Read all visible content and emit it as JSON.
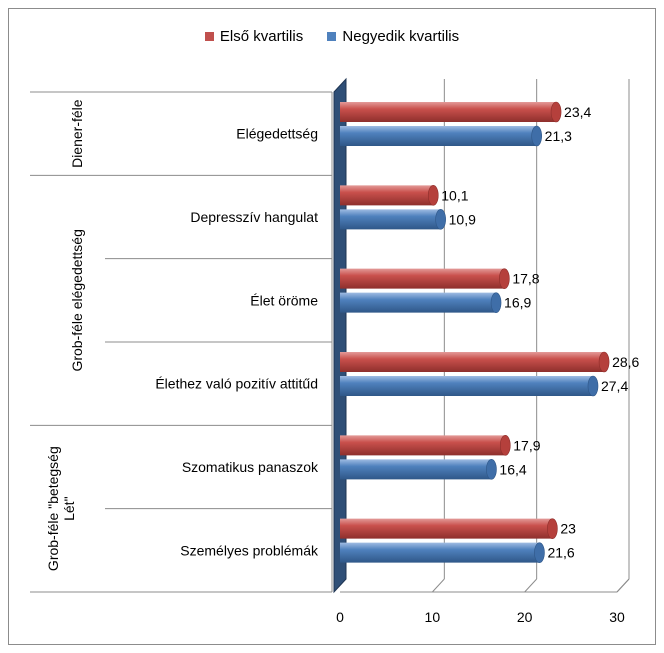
{
  "chart_data": {
    "type": "bar",
    "orientation": "horizontal",
    "grid": true,
    "legend_position": "top",
    "xlim": [
      0,
      30
    ],
    "x_ticks": [
      "0",
      "10",
      "20",
      "30"
    ],
    "categories": [
      "Elégedettség",
      "Depresszív hangulat",
      "Élet öröme",
      "Élethez való pozitív attitűd",
      "Szomatikus panaszok",
      "Személyes problémák"
    ],
    "groups": [
      {
        "label": "Diener-féle",
        "categories": [
          0
        ]
      },
      {
        "label": "Grob-féle elégedettség",
        "categories": [
          1,
          2,
          3
        ]
      },
      {
        "label_lines": [
          "Grob-féle \"betegség",
          "Lét\""
        ],
        "categories": [
          4,
          5
        ]
      }
    ],
    "series": [
      {
        "name": "Első kvartilis",
        "color": "#c0504d",
        "values": [
          23.4,
          10.1,
          17.8,
          28.6,
          17.9,
          23
        ],
        "labels": [
          "23,4",
          "10,1",
          "17,8",
          "28,6",
          "17,9",
          "23"
        ]
      },
      {
        "name": "Negyedik kvartilis",
        "color": "#4f81bd",
        "values": [
          21.3,
          10.9,
          16.9,
          27.4,
          16.4,
          21.6
        ],
        "labels": [
          "21,3",
          "10,9",
          "16,9",
          "27,4",
          "16,4",
          "21,6"
        ]
      }
    ]
  }
}
